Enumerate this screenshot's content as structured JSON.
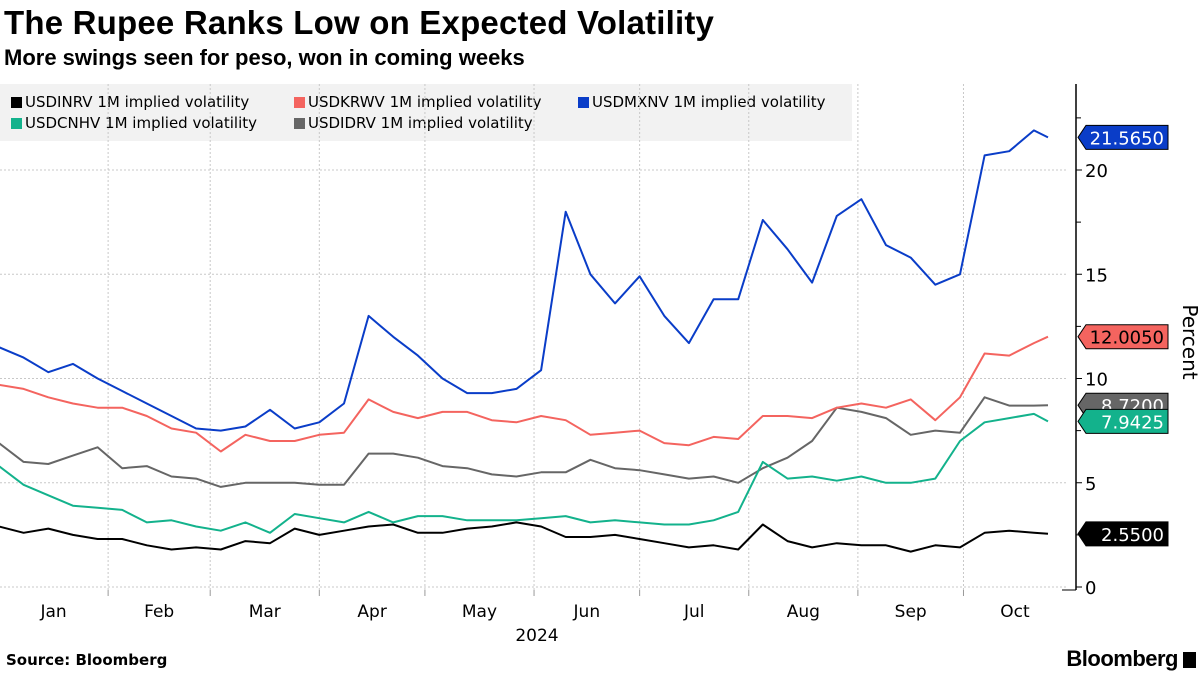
{
  "header": {
    "title": "The Rupee Ranks Low on Expected Volatility",
    "subtitle": "More swings seen for peso, won in coming weeks"
  },
  "footer": {
    "source": "Source: Bloomberg",
    "brand": "Bloomberg"
  },
  "chart_data": {
    "type": "line",
    "title": "The Rupee Ranks Low on Expected Volatility",
    "subtitle": "More swings seen for peso, won in coming weeks",
    "ylabel": "Percent",
    "xlabel": "2024",
    "ylim": [
      0,
      22.5
    ],
    "y_axis_side": "right",
    "y_ticks": [
      0,
      5,
      10,
      15,
      20
    ],
    "x_tick_labels": [
      "Jan",
      "Feb",
      "Mar",
      "Apr",
      "May",
      "Jun",
      "Jul",
      "Aug",
      "Sep",
      "Oct"
    ],
    "x_year_label": "2024",
    "grid": true,
    "legend_placement": "top-left",
    "x": [
      "2024-01-01",
      "2024-01-08",
      "2024-01-15",
      "2024-01-22",
      "2024-01-29",
      "2024-02-05",
      "2024-02-12",
      "2024-02-19",
      "2024-02-26",
      "2024-03-04",
      "2024-03-11",
      "2024-03-18",
      "2024-03-25",
      "2024-04-01",
      "2024-04-08",
      "2024-04-15",
      "2024-04-22",
      "2024-04-29",
      "2024-05-06",
      "2024-05-13",
      "2024-05-20",
      "2024-05-27",
      "2024-06-03",
      "2024-06-10",
      "2024-06-17",
      "2024-06-24",
      "2024-07-01",
      "2024-07-08",
      "2024-07-15",
      "2024-07-22",
      "2024-07-29",
      "2024-08-05",
      "2024-08-12",
      "2024-08-19",
      "2024-08-26",
      "2024-09-02",
      "2024-09-09",
      "2024-09-16",
      "2024-09-23",
      "2024-09-30",
      "2024-10-07",
      "2024-10-14",
      "2024-10-21",
      "2024-10-25"
    ],
    "series": [
      {
        "name": "USDINRV 1M implied volatility",
        "color": "#000000",
        "last_label": "2.5500",
        "label_text_color": "#ffffff",
        "values": [
          2.9,
          2.6,
          2.8,
          2.5,
          2.3,
          2.3,
          2.0,
          1.8,
          1.9,
          1.8,
          2.2,
          2.1,
          2.8,
          2.5,
          2.7,
          2.9,
          3.0,
          2.6,
          2.6,
          2.8,
          2.9,
          3.1,
          2.9,
          2.4,
          2.4,
          2.5,
          2.3,
          2.1,
          1.9,
          2.0,
          1.8,
          3.0,
          2.2,
          1.9,
          2.1,
          2.0,
          2.0,
          1.7,
          2.0,
          1.9,
          2.6,
          2.7,
          2.6,
          2.55
        ]
      },
      {
        "name": "USDKRWV 1M implied volatility",
        "color": "#f4645f",
        "last_label": "12.0050",
        "label_text_color": "#000000",
        "values": [
          9.7,
          9.5,
          9.1,
          8.8,
          8.6,
          8.6,
          8.2,
          7.6,
          7.4,
          6.5,
          7.3,
          7.0,
          7.0,
          7.3,
          7.4,
          9.0,
          8.4,
          8.1,
          8.4,
          8.4,
          8.0,
          7.9,
          8.2,
          8.0,
          7.3,
          7.4,
          7.5,
          6.9,
          6.8,
          7.2,
          7.1,
          8.2,
          8.2,
          8.1,
          8.6,
          8.8,
          8.6,
          9.0,
          8.0,
          9.1,
          11.2,
          11.1,
          11.7,
          12.005
        ]
      },
      {
        "name": "USDMXNV 1M implied volatility",
        "color": "#0a3dc8",
        "last_label": "21.5650",
        "label_text_color": "#ffffff",
        "values": [
          11.5,
          11.0,
          10.3,
          10.7,
          10.0,
          9.4,
          8.8,
          8.2,
          7.6,
          7.5,
          7.7,
          8.5,
          7.6,
          7.9,
          8.8,
          13.0,
          12.0,
          11.1,
          10.0,
          9.3,
          9.3,
          9.5,
          10.4,
          18.0,
          15.0,
          13.6,
          14.9,
          13.0,
          11.7,
          13.8,
          13.8,
          17.6,
          16.2,
          14.6,
          17.8,
          18.6,
          16.4,
          15.8,
          14.5,
          15.0,
          20.7,
          20.9,
          21.9,
          21.565
        ]
      },
      {
        "name": "USDCNHV 1M implied volatility",
        "color": "#13b28c",
        "last_label": "7.9425",
        "label_text_color": "#ffffff",
        "values": [
          5.8,
          4.9,
          4.4,
          3.9,
          3.8,
          3.7,
          3.1,
          3.2,
          2.9,
          2.7,
          3.1,
          2.6,
          3.5,
          3.3,
          3.1,
          3.6,
          3.1,
          3.4,
          3.4,
          3.2,
          3.2,
          3.2,
          3.3,
          3.4,
          3.1,
          3.2,
          3.1,
          3.0,
          3.0,
          3.2,
          3.6,
          6.0,
          5.2,
          5.3,
          5.1,
          5.3,
          5.0,
          5.0,
          5.2,
          7.0,
          7.9,
          8.1,
          8.3,
          7.9425
        ]
      },
      {
        "name": "USDIDRV 1M implied volatility",
        "color": "#666666",
        "last_label": "8.7200",
        "label_text_color": "#ffffff",
        "values": [
          6.9,
          6.0,
          5.9,
          6.3,
          6.7,
          5.7,
          5.8,
          5.3,
          5.2,
          4.8,
          5.0,
          5.0,
          5.0,
          4.9,
          4.9,
          6.4,
          6.4,
          6.2,
          5.8,
          5.7,
          5.4,
          5.3,
          5.5,
          5.5,
          6.1,
          5.7,
          5.6,
          5.4,
          5.2,
          5.3,
          5.0,
          5.7,
          6.2,
          7.0,
          8.6,
          8.4,
          8.1,
          7.3,
          7.5,
          7.4,
          9.1,
          8.7,
          8.7,
          8.72
        ]
      }
    ]
  }
}
